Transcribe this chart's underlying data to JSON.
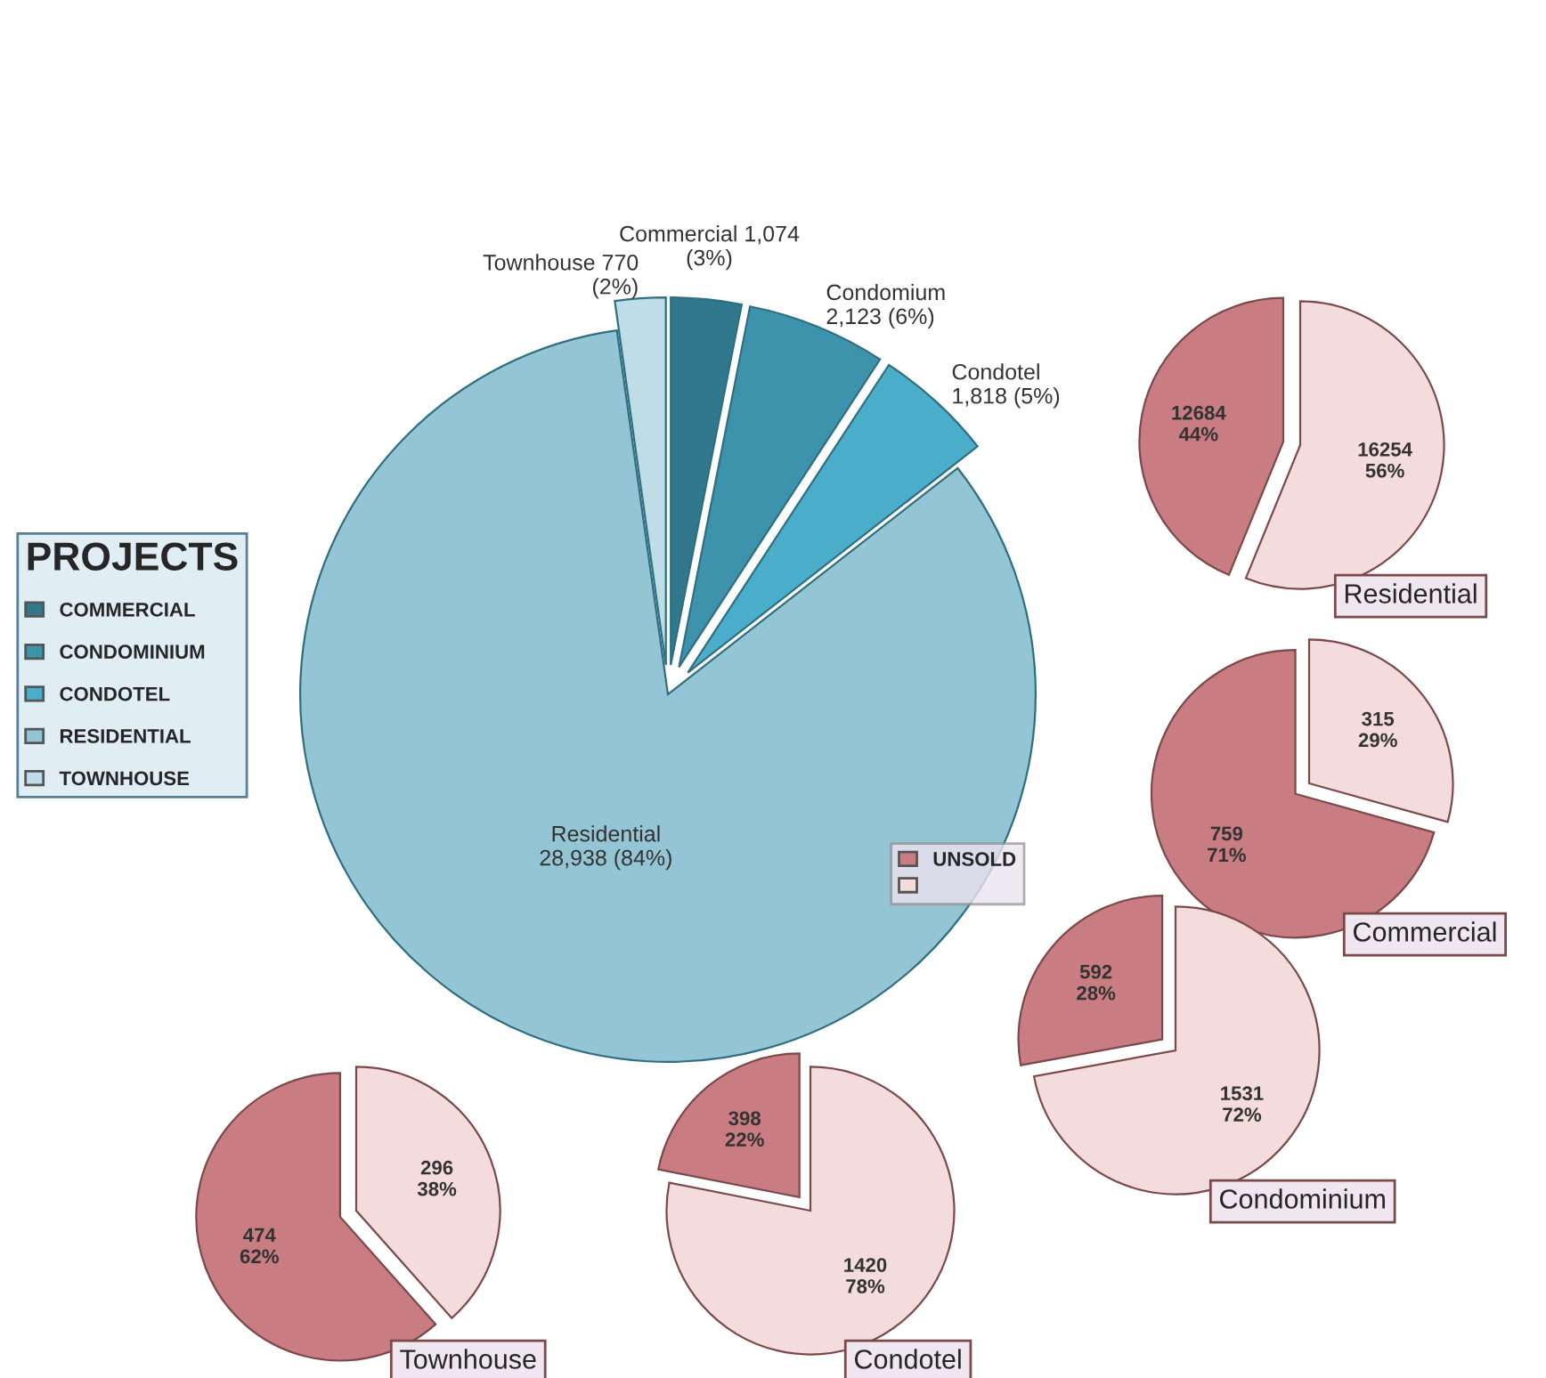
{
  "chart_data": [
    {
      "type": "pie",
      "legend_title": "PROJECTS",
      "legend": "left",
      "categories": [
        "COMMERCIAL",
        "CONDOMINIUM",
        "CONDOTEL",
        "RESIDENTIAL",
        "TOWNHOUSE"
      ],
      "values": [
        1074,
        2123,
        1818,
        28938,
        770
      ],
      "colors": [
        "#31788c",
        "#3d93ab",
        "#4aaecb",
        "#93c5d5",
        "#bfdde6"
      ],
      "value_labels": [
        "Commercial 1,074\n(3%)",
        "Condomium\n2,123 (6%)",
        "Condotel\n1,818 (5%)",
        "Residential\n28,938 (84%)",
        "Townhouse 770\n(2%)"
      ]
    },
    {
      "type": "pie",
      "title": "Residential",
      "legend": "left",
      "categories": [
        "UNSOLD",
        null
      ],
      "values": [
        12684,
        16254
      ],
      "colors": [
        "#c97d82",
        "#f5dcdc"
      ],
      "value_labels": [
        "12684\n44%",
        "16254\n56%"
      ]
    },
    {
      "type": "pie",
      "title": "Commercial",
      "categories": [
        null,
        null
      ],
      "values": [
        759,
        315
      ],
      "colors": [
        "#c97d82",
        "#f5dcdc"
      ],
      "value_labels": [
        "759\n71%",
        "315\n29%"
      ]
    },
    {
      "type": "pie",
      "title": "Condominium",
      "categories": [
        null,
        null
      ],
      "values": [
        592,
        1531
      ],
      "colors": [
        "#c97d82",
        "#f5dcdc"
      ],
      "value_labels": [
        "592\n28%",
        "1531\n72%"
      ]
    },
    {
      "type": "pie",
      "title": "Condotel",
      "categories": [
        null,
        null
      ],
      "values": [
        398,
        1420
      ],
      "colors": [
        "#c97d82",
        "#f5dcdc"
      ],
      "value_labels": [
        "398\n22%",
        "1420\n78%"
      ]
    },
    {
      "type": "pie",
      "title": "Townhouse",
      "categories": [
        null,
        null
      ],
      "values": [
        474,
        296
      ],
      "colors": [
        "#c97d82",
        "#f5dcdc"
      ],
      "value_labels": [
        "474\n62%",
        "296\n38%"
      ]
    }
  ]
}
